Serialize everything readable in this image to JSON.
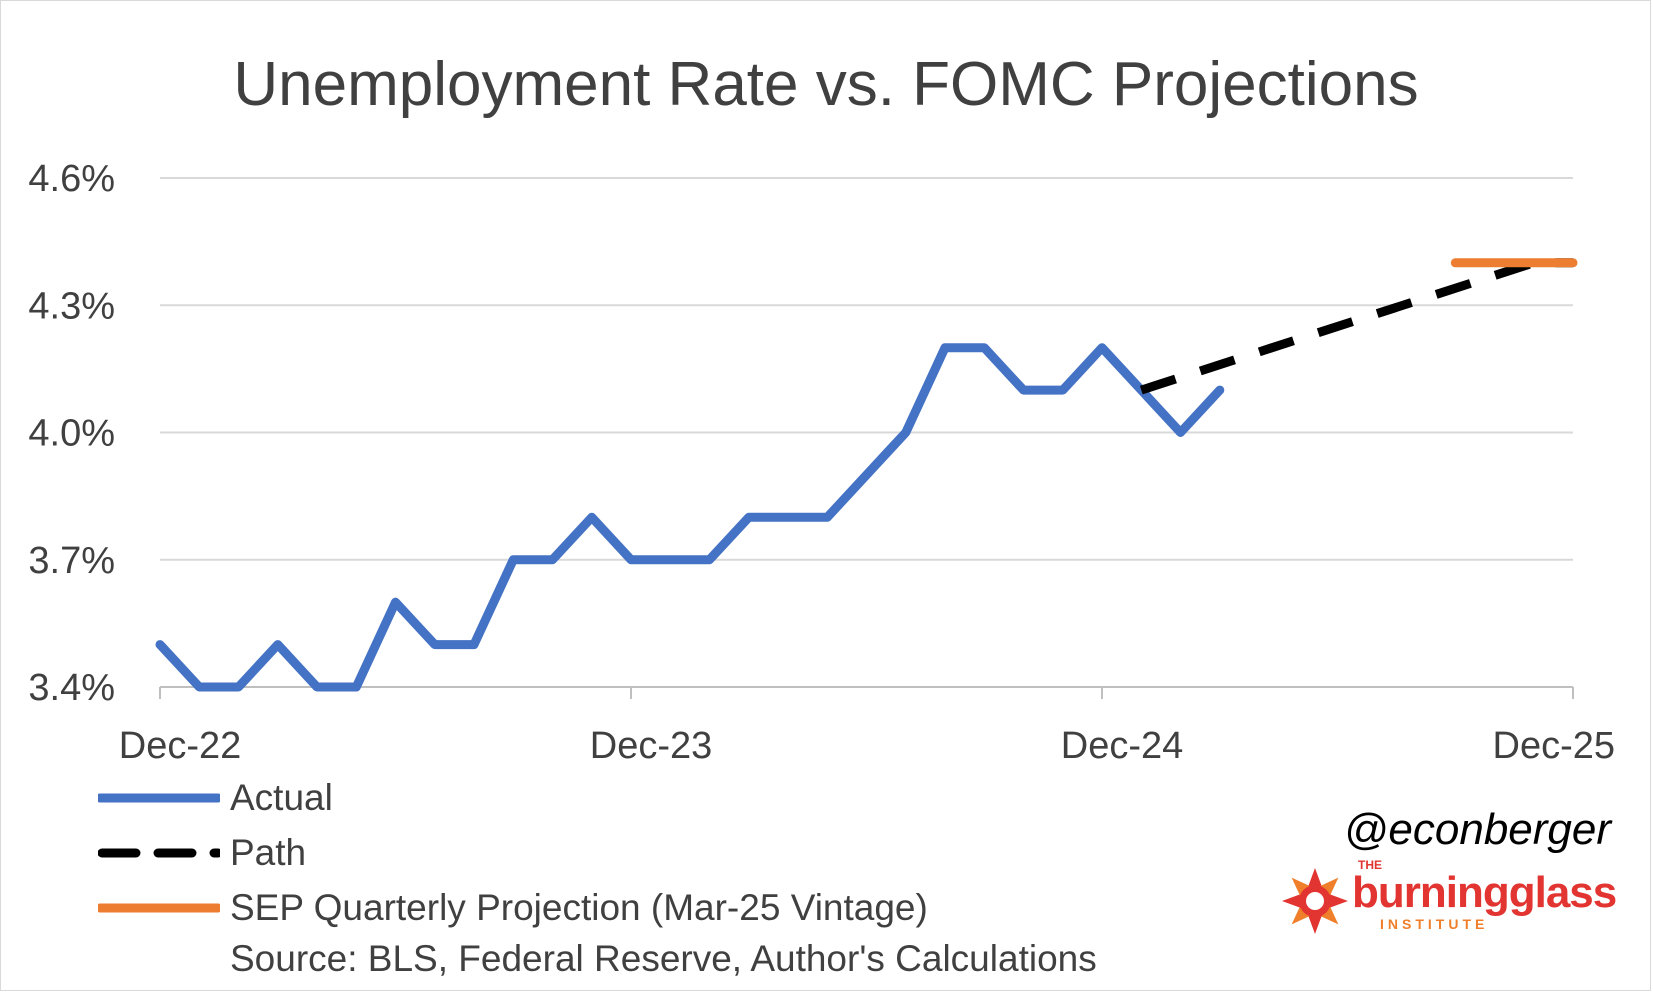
{
  "chart_data": {
    "type": "line",
    "title": "Unemployment Rate vs. FOMC Projections",
    "ylim": [
      3.4,
      4.6
    ],
    "yticks": [
      "3.4%",
      "3.7%",
      "4.0%",
      "4.3%",
      "4.6%"
    ],
    "ytick_values": [
      3.4,
      3.7,
      4.0,
      4.3,
      4.6
    ],
    "xlim": [
      "2022-12",
      "2025-12"
    ],
    "xticks": [
      "Dec-22",
      "Dec-23",
      "Dec-24",
      "Dec-25"
    ],
    "xtick_values": [
      "2022-12",
      "2023-12",
      "2024-12",
      "2025-12"
    ],
    "grid": true,
    "legend_position": "bottom-left",
    "series": [
      {
        "name": "Actual",
        "color": "#4472c4",
        "style": "solid",
        "x": [
          "2022-12",
          "2023-01",
          "2023-02",
          "2023-03",
          "2023-04",
          "2023-05",
          "2023-06",
          "2023-07",
          "2023-08",
          "2023-09",
          "2023-10",
          "2023-11",
          "2023-12",
          "2024-01",
          "2024-02",
          "2024-03",
          "2024-04",
          "2024-05",
          "2024-06",
          "2024-07",
          "2024-08",
          "2024-09",
          "2024-10",
          "2024-11",
          "2024-12",
          "2025-01",
          "2025-02",
          "2025-03"
        ],
        "values": [
          3.5,
          3.4,
          3.4,
          3.5,
          3.4,
          3.4,
          3.6,
          3.5,
          3.5,
          3.7,
          3.7,
          3.8,
          3.7,
          3.7,
          3.7,
          3.8,
          3.8,
          3.8,
          3.9,
          4.0,
          4.2,
          4.2,
          4.1,
          4.1,
          4.2,
          4.1,
          4.0,
          4.1
        ]
      },
      {
        "name": "Path",
        "color": "#000000",
        "style": "dashed",
        "x": [
          "2025-01",
          "2025-11",
          "2025-12"
        ],
        "values": [
          4.1,
          4.4,
          4.4
        ]
      },
      {
        "name": "SEP Quarterly Projection (Mar-25 Vintage)",
        "color": "#ed7d31",
        "style": "solid",
        "x": [
          "2025-09",
          "2025-12"
        ],
        "values": [
          4.4,
          4.4
        ]
      }
    ]
  },
  "source_text": "Source: BLS, Federal Reserve, Author's Calculations",
  "handle": "@econberger",
  "logo": {
    "the": "THE",
    "name": "burningglass",
    "institute": "INSTITUTE",
    "colors": {
      "red": "#e23431",
      "orange": "#f07f2b"
    }
  }
}
